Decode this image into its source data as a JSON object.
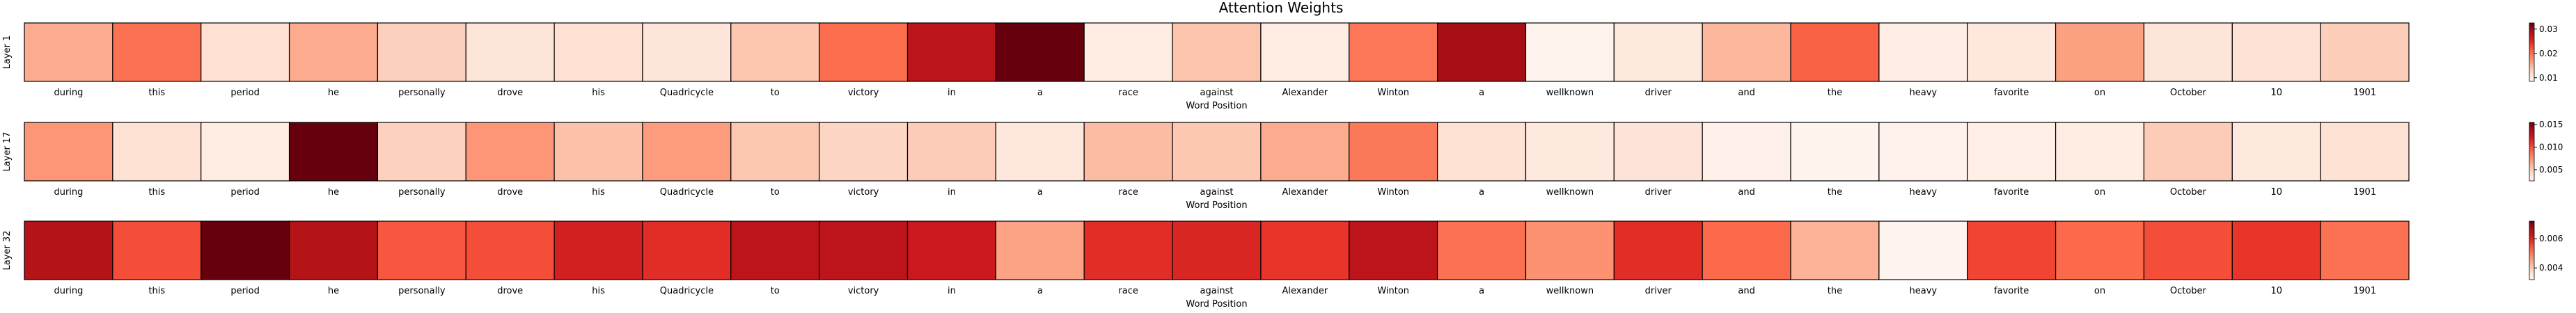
{
  "chart_data": {
    "type": "heatmap",
    "title": "Attention Weights",
    "xlabel": "Word Position",
    "colormap": "Reds",
    "tokens": [
      "during",
      "this",
      "period",
      "he",
      "personally",
      "drove",
      "his",
      "Quadricycle",
      "to",
      "victory",
      "in",
      "a",
      "race",
      "against",
      "Alexander",
      "Winton",
      "a",
      "wellknown",
      "driver",
      "and",
      "the",
      "heavy",
      "favorite",
      "on",
      "October",
      "10",
      "1901"
    ],
    "layers": [
      {
        "name": "Layer 1",
        "weights": [
          0.0155,
          0.0198,
          0.0114,
          0.0157,
          0.0128,
          0.0108,
          0.0114,
          0.0106,
          0.0136,
          0.0203,
          0.0278,
          0.0325,
          0.0098,
          0.0138,
          0.0098,
          0.0195,
          0.0295,
          0.0088,
          0.0102,
          0.0148,
          0.021,
          0.0095,
          0.0104,
          0.0165,
          0.0108,
          0.0112,
          0.013
        ],
        "vmin": 0.0085,
        "vmax": 0.0325,
        "ticks": [
          0.01,
          0.02,
          0.03
        ],
        "tick_labels": [
          "0.01",
          "0.02",
          "0.03"
        ]
      },
      {
        "name": "Layer 17",
        "weights": [
          0.0072,
          0.004,
          0.0032,
          0.0155,
          0.0048,
          0.0072,
          0.0055,
          0.007,
          0.0052,
          0.0046,
          0.005,
          0.0036,
          0.0057,
          0.0052,
          0.0064,
          0.0084,
          0.004,
          0.0034,
          0.0038,
          0.0028,
          0.0026,
          0.0027,
          0.003,
          0.0032,
          0.005,
          0.0034,
          0.004
        ],
        "vmin": 0.0025,
        "vmax": 0.0155,
        "ticks": [
          0.005,
          0.01,
          0.015
        ],
        "tick_labels": [
          "0.005",
          "0.010",
          "0.015"
        ]
      },
      {
        "name": "Layer 32",
        "weights": [
          0.0065,
          0.0055,
          0.0072,
          0.0065,
          0.0054,
          0.0055,
          0.0061,
          0.0059,
          0.0064,
          0.0064,
          0.0062,
          0.0045,
          0.0059,
          0.006,
          0.0058,
          0.0064,
          0.0051,
          0.0047,
          0.0059,
          0.0052,
          0.0043,
          0.0032,
          0.0056,
          0.0052,
          0.0055,
          0.0058,
          0.0051
        ],
        "vmin": 0.0032,
        "vmax": 0.0072,
        "ticks": [
          0.004,
          0.006
        ],
        "tick_labels": [
          "0.004",
          "0.006"
        ]
      }
    ]
  }
}
